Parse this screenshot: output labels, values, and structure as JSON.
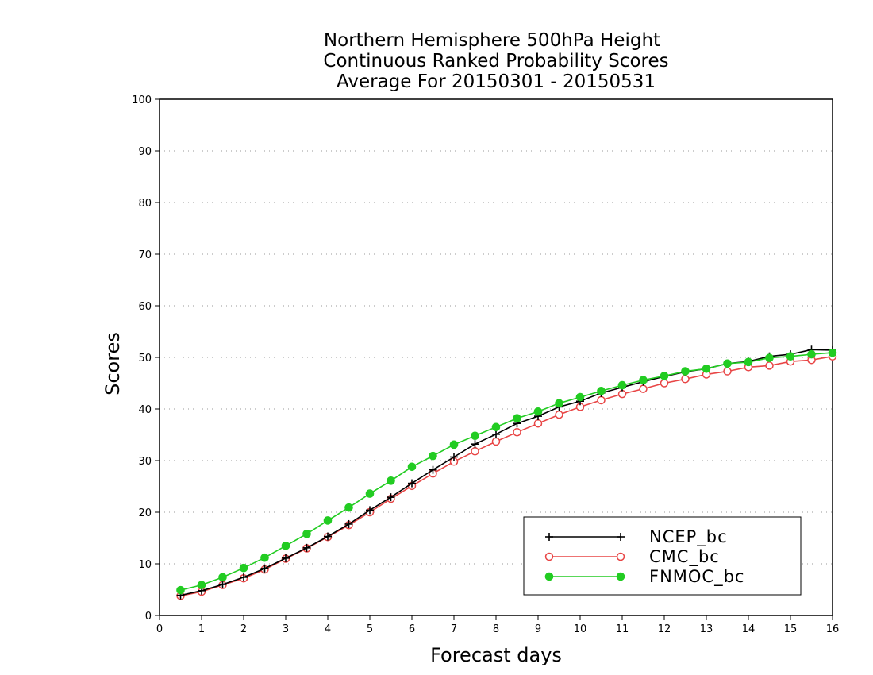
{
  "chart_data": {
    "type": "line",
    "title_lines": [
      "Northern Hemisphere 500hPa Height",
      "Continuous Ranked Probability Scores",
      "Average For 20150301 - 20150531"
    ],
    "xlabel": "Forecast days",
    "ylabel": "Scores",
    "xlim": [
      0,
      16
    ],
    "ylim": [
      0,
      100
    ],
    "xticks": [
      0,
      1,
      2,
      3,
      4,
      5,
      6,
      7,
      8,
      9,
      10,
      11,
      12,
      13,
      14,
      15,
      16
    ],
    "yticks": [
      0,
      10,
      20,
      30,
      40,
      50,
      60,
      70,
      80,
      90,
      100
    ],
    "grid": "horizontal dotted",
    "legend_position": "bottom-right",
    "x": [
      0.5,
      1,
      1.5,
      2,
      2.5,
      3,
      3.5,
      4,
      4.5,
      5,
      5.5,
      6,
      6.5,
      7,
      7.5,
      8,
      8.5,
      9,
      9.5,
      10,
      10.5,
      11,
      11.5,
      12,
      12.5,
      13,
      13.5,
      14,
      14.5,
      15,
      15.5,
      16
    ],
    "series": [
      {
        "name": "NCEP_bc",
        "color": "#000000",
        "marker": "plus",
        "values": [
          3.9,
          4.8,
          6.0,
          7.4,
          9.1,
          11.1,
          13.1,
          15.3,
          17.7,
          20.4,
          22.9,
          25.6,
          28.2,
          30.7,
          33.2,
          35.1,
          37.2,
          38.6,
          40.4,
          41.5,
          43.1,
          44.2,
          45.3,
          46.3,
          47.2,
          47.8,
          48.8,
          49.2,
          50.2,
          50.6,
          51.5,
          51.4
        ]
      },
      {
        "name": "CMC_bc",
        "color": "#e84545",
        "marker": "open-circle",
        "values": [
          3.8,
          4.6,
          5.9,
          7.2,
          8.9,
          11.0,
          13.0,
          15.2,
          17.5,
          20.0,
          22.6,
          25.1,
          27.5,
          29.8,
          31.8,
          33.7,
          35.5,
          37.2,
          38.9,
          40.4,
          41.7,
          42.9,
          43.9,
          45.0,
          45.8,
          46.7,
          47.3,
          48.1,
          48.4,
          49.2,
          49.5,
          50.2
        ]
      },
      {
        "name": "FNMOC_bc",
        "color": "#22cc22",
        "marker": "filled-circle",
        "values": [
          4.9,
          5.9,
          7.4,
          9.2,
          11.2,
          13.5,
          15.8,
          18.4,
          20.9,
          23.6,
          26.1,
          28.8,
          30.9,
          33.1,
          34.8,
          36.5,
          38.2,
          39.5,
          41.1,
          42.3,
          43.5,
          44.6,
          45.6,
          46.4,
          47.3,
          47.8,
          48.8,
          49.1,
          49.9,
          50.2,
          50.6,
          50.9
        ]
      }
    ]
  }
}
